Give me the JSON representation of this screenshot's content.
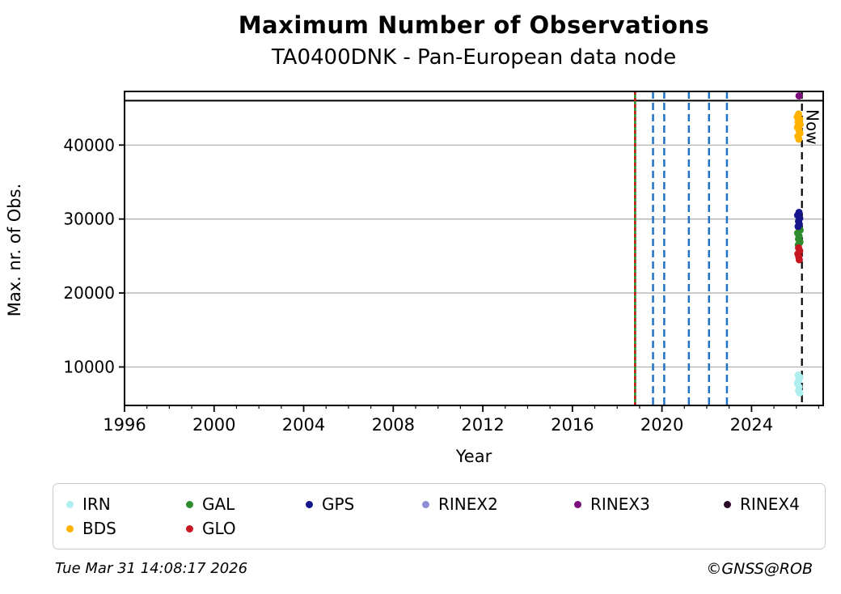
{
  "chart_data": {
    "type": "scatter",
    "title": "Maximum Number of Observations",
    "subtitle": "TA0400DNK - Pan-European data node",
    "xlabel": "Year",
    "ylabel": "Max. nr. of Obs.",
    "xlim": [
      1996,
      2027.2
    ],
    "ylim": [
      4800,
      47250
    ],
    "xticks_major": [
      1996,
      2000,
      2004,
      2008,
      2012,
      2016,
      2020,
      2024
    ],
    "xtick_minor_step": 1,
    "yticks": [
      10000,
      20000,
      30000,
      40000
    ],
    "grid": "horizontal",
    "grid_color": "#b0b0b0",
    "hline": {
      "y": 46000,
      "color": "#000000",
      "name": "max-observations-line"
    },
    "vlines": [
      {
        "x": 2018.8,
        "color": "#228B22",
        "dash": "solid",
        "width": 2.5,
        "name": "station-start-line-green"
      },
      {
        "x": 2018.8,
        "color": "#D01010",
        "dash": "4,4",
        "width": 2.5,
        "name": "station-start-line-red-overlay"
      },
      {
        "x": 2019.6,
        "color": "#2272C4",
        "dash": "9,5",
        "width": 2.5,
        "name": "change-event-line"
      },
      {
        "x": 2020.1,
        "color": "#2272C4",
        "dash": "9,5",
        "width": 2.5,
        "name": "change-event-line"
      },
      {
        "x": 2021.2,
        "color": "#2272C4",
        "dash": "9,5",
        "width": 2.5,
        "name": "change-event-line"
      },
      {
        "x": 2022.1,
        "color": "#2272C4",
        "dash": "9,5",
        "width": 2.5,
        "name": "change-event-line"
      },
      {
        "x": 2022.9,
        "color": "#2272C4",
        "dash": "9,5",
        "width": 2.5,
        "name": "change-event-line"
      },
      {
        "x": 2026.25,
        "color": "#000000",
        "dash": "9,6",
        "width": 2.2,
        "name": "now-line",
        "label": "Now"
      }
    ],
    "series": [
      {
        "name": "IRN",
        "color": "#AFEEEE",
        "points": [
          [
            2026.08,
            8900
          ],
          [
            2026.16,
            8600
          ],
          [
            2026.1,
            8200
          ],
          [
            2026.05,
            7800
          ],
          [
            2026.12,
            7300
          ],
          [
            2026.1,
            6800
          ],
          [
            2026.15,
            6500
          ]
        ]
      },
      {
        "name": "GAL",
        "color": "#2E8B2E",
        "points": [
          [
            2026.1,
            28900
          ],
          [
            2026.17,
            28500
          ],
          [
            2026.06,
            28100
          ],
          [
            2026.12,
            27700
          ],
          [
            2026.1,
            27300
          ],
          [
            2026.16,
            26900
          ],
          [
            2026.09,
            26500
          ]
        ]
      },
      {
        "name": "GPS",
        "color": "#16168C",
        "points": [
          [
            2026.12,
            30900
          ],
          [
            2026.06,
            30500
          ],
          [
            2026.15,
            30100
          ],
          [
            2026.1,
            29700
          ],
          [
            2026.13,
            29300
          ],
          [
            2026.08,
            29000
          ]
        ]
      },
      {
        "name": "RINEX2",
        "color": "#8E8ED6",
        "points": []
      },
      {
        "name": "RINEX3",
        "color": "#7D0E7D",
        "points": [
          [
            2026.12,
            46650
          ]
        ]
      },
      {
        "name": "RINEX4",
        "color": "#2B0B2B",
        "points": []
      },
      {
        "name": "BDS",
        "color": "#FFB300",
        "points": [
          [
            2026.1,
            44200
          ],
          [
            2026.04,
            43800
          ],
          [
            2026.15,
            43500
          ],
          [
            2026.08,
            43100
          ],
          [
            2026.17,
            42800
          ],
          [
            2026.05,
            42400
          ],
          [
            2026.12,
            42000
          ],
          [
            2026.16,
            41600
          ],
          [
            2026.07,
            41200
          ],
          [
            2026.11,
            40800
          ]
        ]
      },
      {
        "name": "GLO",
        "color": "#C61620",
        "points": [
          [
            2026.1,
            26100
          ],
          [
            2026.15,
            25700
          ],
          [
            2026.07,
            25300
          ],
          [
            2026.11,
            24900
          ],
          [
            2026.13,
            24500
          ]
        ]
      }
    ],
    "legend": {
      "columns": 6,
      "order": [
        "IRN",
        "GAL",
        "GPS",
        "RINEX2",
        "RINEX3",
        "RINEX4",
        "BDS",
        "GLO"
      ]
    }
  },
  "footer": {
    "timestamp": "Tue Mar 31 14:08:17 2026",
    "credit": "©GNSS@ROB"
  }
}
